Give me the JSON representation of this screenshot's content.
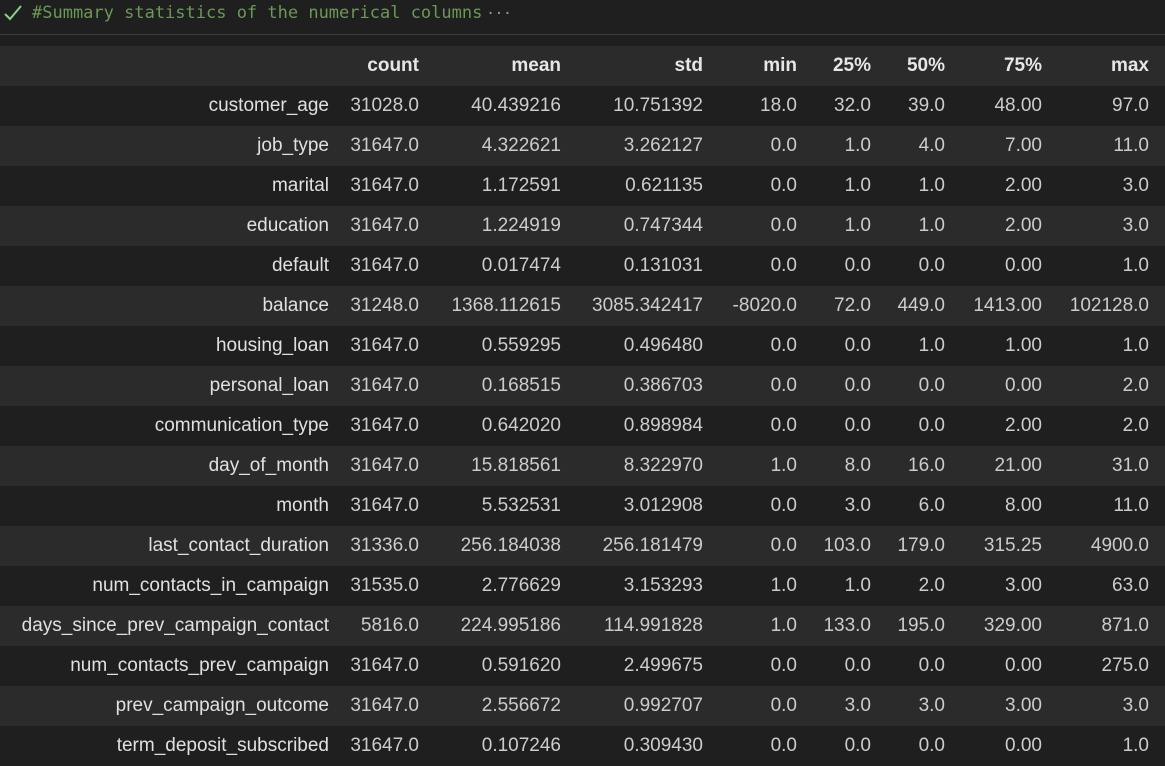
{
  "cell": {
    "comment": "#Summary statistics of the numerical columns",
    "ellipsis": "···",
    "status_icon": "check-icon"
  },
  "table": {
    "columns": [
      "",
      "count",
      "mean",
      "std",
      "min",
      "25%",
      "50%",
      "75%",
      "max"
    ],
    "rows": [
      [
        "customer_age",
        "31028.0",
        "40.439216",
        "10.751392",
        "18.0",
        "32.0",
        "39.0",
        "48.00",
        "97.0"
      ],
      [
        "job_type",
        "31647.0",
        "4.322621",
        "3.262127",
        "0.0",
        "1.0",
        "4.0",
        "7.00",
        "11.0"
      ],
      [
        "marital",
        "31647.0",
        "1.172591",
        "0.621135",
        "0.0",
        "1.0",
        "1.0",
        "2.00",
        "3.0"
      ],
      [
        "education",
        "31647.0",
        "1.224919",
        "0.747344",
        "0.0",
        "1.0",
        "1.0",
        "2.00",
        "3.0"
      ],
      [
        "default",
        "31647.0",
        "0.017474",
        "0.131031",
        "0.0",
        "0.0",
        "0.0",
        "0.00",
        "1.0"
      ],
      [
        "balance",
        "31248.0",
        "1368.112615",
        "3085.342417",
        "-8020.0",
        "72.0",
        "449.0",
        "1413.00",
        "102128.0"
      ],
      [
        "housing_loan",
        "31647.0",
        "0.559295",
        "0.496480",
        "0.0",
        "0.0",
        "1.0",
        "1.00",
        "1.0"
      ],
      [
        "personal_loan",
        "31647.0",
        "0.168515",
        "0.386703",
        "0.0",
        "0.0",
        "0.0",
        "0.00",
        "2.0"
      ],
      [
        "communication_type",
        "31647.0",
        "0.642020",
        "0.898984",
        "0.0",
        "0.0",
        "0.0",
        "2.00",
        "2.0"
      ],
      [
        "day_of_month",
        "31647.0",
        "15.818561",
        "8.322970",
        "1.0",
        "8.0",
        "16.0",
        "21.00",
        "31.0"
      ],
      [
        "month",
        "31647.0",
        "5.532531",
        "3.012908",
        "0.0",
        "3.0",
        "6.0",
        "8.00",
        "11.0"
      ],
      [
        "last_contact_duration",
        "31336.0",
        "256.184038",
        "256.181479",
        "0.0",
        "103.0",
        "179.0",
        "315.25",
        "4900.0"
      ],
      [
        "num_contacts_in_campaign",
        "31535.0",
        "2.776629",
        "3.153293",
        "1.0",
        "1.0",
        "2.0",
        "3.00",
        "63.0"
      ],
      [
        "days_since_prev_campaign_contact",
        "5816.0",
        "224.995186",
        "114.991828",
        "1.0",
        "133.0",
        "195.0",
        "329.00",
        "871.0"
      ],
      [
        "num_contacts_prev_campaign",
        "31647.0",
        "0.591620",
        "2.499675",
        "0.0",
        "0.0",
        "0.0",
        "0.00",
        "275.0"
      ],
      [
        "prev_campaign_outcome",
        "31647.0",
        "2.556672",
        "0.992707",
        "0.0",
        "3.0",
        "3.0",
        "3.00",
        "3.0"
      ],
      [
        "term_deposit_subscribed",
        "31647.0",
        "0.107246",
        "0.309430",
        "0.0",
        "0.0",
        "0.0",
        "0.00",
        "1.0"
      ]
    ]
  }
}
